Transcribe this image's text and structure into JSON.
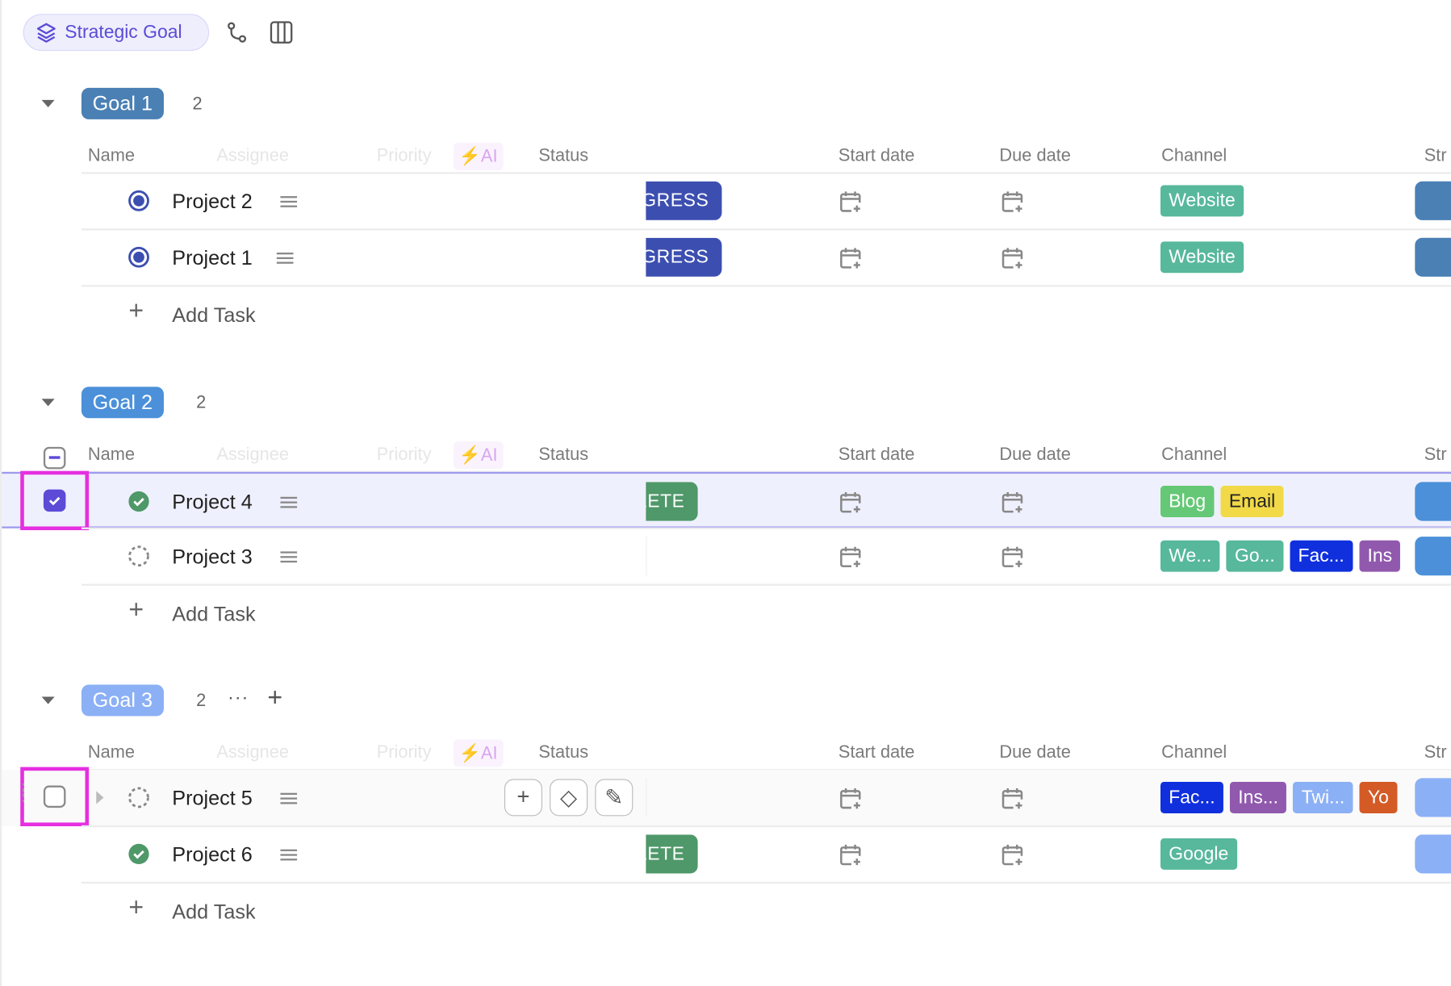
{
  "toolbar": {
    "view_label": "Strategic Goal",
    "icons": [
      "layers-icon",
      "subtasks-icon",
      "columns-icon"
    ]
  },
  "columns": {
    "name": "Name",
    "assignee": "Assignee",
    "priority": "Priority",
    "ai": "AI",
    "status": "Status",
    "start_date": "Start date",
    "due_date": "Due date",
    "channel": "Channel",
    "strategic": "Str"
  },
  "add_task_label": "Add Task",
  "groups": [
    {
      "label": "Goal 1",
      "count": "2",
      "color": "#4a80b4",
      "show_select_all": false,
      "show_actions": false,
      "tasks": [
        {
          "name": "Project 2",
          "status_icon": "in-progress",
          "status": "IN PROGRESS",
          "status_color": "#3c4fb0",
          "channels": [
            {
              "label": "Website",
              "color": "#57b89c"
            }
          ],
          "strategic_color": "#4a80b4"
        },
        {
          "name": "Project 1",
          "status_icon": "in-progress",
          "status": "IN PROGRESS",
          "status_color": "#3c4fb0",
          "channels": [
            {
              "label": "Website",
              "color": "#57b89c"
            }
          ],
          "strategic_color": "#4a80b4"
        }
      ]
    },
    {
      "label": "Goal 2",
      "count": "2",
      "color": "#4b90d9",
      "show_select_all": true,
      "show_actions": false,
      "tasks": [
        {
          "name": "Project 4",
          "status_icon": "complete",
          "status": "COMPLETE",
          "status_color": "#4f9869",
          "selected": true,
          "checked": true,
          "channels": [
            {
              "label": "Blog",
              "color": "#65c876"
            },
            {
              "label": "Email",
              "color": "#f2d948",
              "text": "#222"
            }
          ],
          "strategic_color": "#4b90d9"
        },
        {
          "name": "Project 3",
          "status_icon": "todo",
          "status": "",
          "status_color": "",
          "channels": [
            {
              "label": "We...",
              "color": "#57b89c"
            },
            {
              "label": "Go...",
              "color": "#57b89c"
            },
            {
              "label": "Fac...",
              "color": "#1030de"
            },
            {
              "label": "Ins",
              "color": "#9159ad"
            }
          ],
          "strategic_color": "#4b90d9"
        }
      ]
    },
    {
      "label": "Goal 3",
      "count": "2",
      "color": "#8cb0f5",
      "show_select_all": false,
      "show_actions": true,
      "tasks": [
        {
          "name": "Project 5",
          "status_icon": "todo",
          "status": "",
          "status_color": "",
          "hover": true,
          "checked": false,
          "channels": [
            {
              "label": "Fac...",
              "color": "#1030de"
            },
            {
              "label": "Ins...",
              "color": "#9159ad"
            },
            {
              "label": "Twi...",
              "color": "#8cb0f5"
            },
            {
              "label": "Yo",
              "color": "#d45a26"
            }
          ],
          "strategic_color": "#8cb0f5"
        },
        {
          "name": "Project 6",
          "status_icon": "complete",
          "status": "COMPLETE",
          "status_color": "#4f9869",
          "channels": [
            {
              "label": "Google",
              "color": "#57b89c"
            }
          ],
          "strategic_color": "#8cb0f5"
        }
      ]
    }
  ],
  "accent": "#5b4bd6",
  "highlight": "#e52fe0"
}
